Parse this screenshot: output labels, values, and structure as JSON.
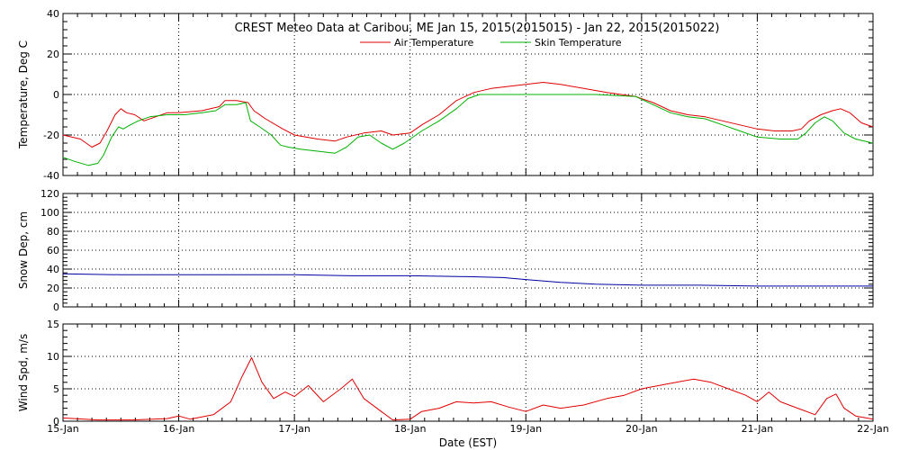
{
  "chart_data": {
    "type": "line",
    "title": "CREST Meteo Data at Caribou, ME   Jan 15, 2015(2015015) - Jan 22, 2015(2015022)",
    "xlabel": "Date (EST)",
    "x_range": [
      "2015-01-15",
      "2015-01-22"
    ],
    "x_ticks": [
      "15-Jan",
      "16-Jan",
      "17-Jan",
      "18-Jan",
      "19-Jan",
      "20-Jan",
      "21-Jan",
      "22-Jan"
    ],
    "grid": true,
    "panels": [
      {
        "ylabel": "Temperature, Deg C",
        "ylim": [
          -40,
          40
        ],
        "y_ticks": [
          -40,
          -20,
          0,
          20,
          40
        ],
        "legend": "top-center",
        "series": [
          {
            "name": "Air Temperature",
            "color": "#e00000",
            "points": [
              [
                0.0,
                -20
              ],
              [
                0.15,
                -22
              ],
              [
                0.25,
                -26
              ],
              [
                0.32,
                -24
              ],
              [
                0.38,
                -18
              ],
              [
                0.45,
                -10
              ],
              [
                0.5,
                -7
              ],
              [
                0.55,
                -9
              ],
              [
                0.62,
                -10
              ],
              [
                0.7,
                -13
              ],
              [
                0.8,
                -11
              ],
              [
                0.9,
                -9
              ],
              [
                1.0,
                -9
              ],
              [
                1.2,
                -8
              ],
              [
                1.35,
                -6
              ],
              [
                1.4,
                -3
              ],
              [
                1.5,
                -3
              ],
              [
                1.6,
                -4
              ],
              [
                1.65,
                -8
              ],
              [
                1.75,
                -12
              ],
              [
                1.9,
                -17
              ],
              [
                2.0,
                -20
              ],
              [
                2.2,
                -22
              ],
              [
                2.35,
                -23
              ],
              [
                2.45,
                -21
              ],
              [
                2.6,
                -19
              ],
              [
                2.75,
                -18
              ],
              [
                2.85,
                -20
              ],
              [
                3.0,
                -19
              ],
              [
                3.1,
                -15
              ],
              [
                3.25,
                -10
              ],
              [
                3.4,
                -3
              ],
              [
                3.55,
                1
              ],
              [
                3.7,
                3
              ],
              [
                3.85,
                4
              ],
              [
                4.0,
                5
              ],
              [
                4.15,
                6
              ],
              [
                4.3,
                5
              ],
              [
                4.5,
                3
              ],
              [
                4.7,
                1
              ],
              [
                4.95,
                -1
              ],
              [
                5.1,
                -4
              ],
              [
                5.25,
                -8
              ],
              [
                5.4,
                -10
              ],
              [
                5.55,
                -11
              ],
              [
                5.7,
                -13
              ],
              [
                5.85,
                -15
              ],
              [
                6.0,
                -17
              ],
              [
                6.15,
                -18
              ],
              [
                6.3,
                -18
              ],
              [
                6.38,
                -17
              ],
              [
                6.45,
                -13
              ],
              [
                6.55,
                -10
              ],
              [
                6.65,
                -8
              ],
              [
                6.72,
                -7
              ],
              [
                6.8,
                -9
              ],
              [
                6.9,
                -14
              ],
              [
                7.0,
                -16
              ]
            ]
          },
          {
            "name": "Skin Temperature",
            "color": "#00b000",
            "points": [
              [
                0.0,
                -31
              ],
              [
                0.1,
                -33
              ],
              [
                0.22,
                -35
              ],
              [
                0.3,
                -34
              ],
              [
                0.35,
                -30
              ],
              [
                0.42,
                -21
              ],
              [
                0.48,
                -16
              ],
              [
                0.52,
                -17
              ],
              [
                0.58,
                -15
              ],
              [
                0.65,
                -13
              ],
              [
                0.75,
                -11
              ],
              [
                0.9,
                -10
              ],
              [
                1.05,
                -10
              ],
              [
                1.2,
                -9
              ],
              [
                1.32,
                -8
              ],
              [
                1.4,
                -5
              ],
              [
                1.5,
                -5
              ],
              [
                1.58,
                -4
              ],
              [
                1.62,
                -13
              ],
              [
                1.7,
                -16
              ],
              [
                1.8,
                -20
              ],
              [
                1.88,
                -25
              ],
              [
                1.95,
                -26
              ],
              [
                2.05,
                -27
              ],
              [
                2.2,
                -28
              ],
              [
                2.35,
                -29
              ],
              [
                2.45,
                -26
              ],
              [
                2.55,
                -21
              ],
              [
                2.65,
                -20
              ],
              [
                2.75,
                -24
              ],
              [
                2.85,
                -27
              ],
              [
                2.95,
                -24
              ],
              [
                3.1,
                -18
              ],
              [
                3.25,
                -13
              ],
              [
                3.4,
                -7
              ],
              [
                3.5,
                -2
              ],
              [
                3.6,
                0
              ],
              [
                3.8,
                0
              ],
              [
                4.0,
                0
              ],
              [
                4.3,
                0
              ],
              [
                4.6,
                0
              ],
              [
                4.95,
                -1
              ],
              [
                5.1,
                -5
              ],
              [
                5.25,
                -9
              ],
              [
                5.4,
                -11
              ],
              [
                5.55,
                -12
              ],
              [
                5.7,
                -15
              ],
              [
                5.85,
                -18
              ],
              [
                6.0,
                -21
              ],
              [
                6.2,
                -22
              ],
              [
                6.35,
                -22
              ],
              [
                6.42,
                -19
              ],
              [
                6.5,
                -14
              ],
              [
                6.58,
                -11
              ],
              [
                6.65,
                -13
              ],
              [
                6.75,
                -19
              ],
              [
                6.85,
                -22
              ],
              [
                7.0,
                -24
              ]
            ]
          }
        ]
      },
      {
        "ylabel": "Snow Dep, cm",
        "ylim": [
          0,
          120
        ],
        "y_ticks": [
          0,
          20,
          40,
          60,
          80,
          100,
          120
        ],
        "series": [
          {
            "color": "#0000a0",
            "points": [
              [
                0.0,
                35
              ],
              [
                0.5,
                34
              ],
              [
                1.0,
                34
              ],
              [
                1.5,
                34
              ],
              [
                2.0,
                34
              ],
              [
                2.5,
                33
              ],
              [
                3.0,
                33
              ],
              [
                3.5,
                32
              ],
              [
                3.8,
                31
              ],
              [
                4.0,
                29
              ],
              [
                4.3,
                26
              ],
              [
                4.6,
                24
              ],
              [
                5.0,
                23
              ],
              [
                5.5,
                23
              ],
              [
                6.0,
                22
              ],
              [
                6.5,
                22
              ],
              [
                7.0,
                22
              ]
            ]
          }
        ]
      },
      {
        "ylabel": "Wind Spd, m/s",
        "ylim": [
          0,
          15
        ],
        "y_ticks": [
          0,
          5,
          10,
          15
        ],
        "series": [
          {
            "color": "#e00000",
            "points": [
              [
                0.0,
                0.5
              ],
              [
                0.3,
                0.2
              ],
              [
                0.6,
                0.2
              ],
              [
                0.9,
                0.4
              ],
              [
                1.0,
                0.8
              ],
              [
                1.1,
                0.3
              ],
              [
                1.3,
                1.0
              ],
              [
                1.45,
                3.0
              ],
              [
                1.55,
                7.0
              ],
              [
                1.63,
                9.8
              ],
              [
                1.72,
                6.0
              ],
              [
                1.82,
                3.5
              ],
              [
                1.92,
                4.5
              ],
              [
                2.0,
                3.8
              ],
              [
                2.12,
                5.5
              ],
              [
                2.25,
                3.0
              ],
              [
                2.4,
                5.0
              ],
              [
                2.5,
                6.5
              ],
              [
                2.6,
                3.5
              ],
              [
                2.75,
                1.5
              ],
              [
                2.85,
                0.2
              ],
              [
                3.0,
                0.3
              ],
              [
                3.1,
                1.5
              ],
              [
                3.25,
                2.0
              ],
              [
                3.4,
                3.0
              ],
              [
                3.55,
                2.8
              ],
              [
                3.7,
                3.0
              ],
              [
                3.85,
                2.2
              ],
              [
                4.0,
                1.5
              ],
              [
                4.15,
                2.5
              ],
              [
                4.3,
                2.0
              ],
              [
                4.5,
                2.5
              ],
              [
                4.7,
                3.5
              ],
              [
                4.85,
                4.0
              ],
              [
                5.0,
                5.0
              ],
              [
                5.15,
                5.5
              ],
              [
                5.3,
                6.0
              ],
              [
                5.45,
                6.5
              ],
              [
                5.6,
                6.0
              ],
              [
                5.75,
                5.0
              ],
              [
                5.9,
                4.0
              ],
              [
                6.0,
                3.0
              ],
              [
                6.1,
                4.5
              ],
              [
                6.2,
                3.0
              ],
              [
                6.35,
                2.0
              ],
              [
                6.5,
                1.0
              ],
              [
                6.6,
                3.5
              ],
              [
                6.68,
                4.2
              ],
              [
                6.75,
                2.0
              ],
              [
                6.85,
                0.8
              ],
              [
                7.0,
                0.3
              ]
            ]
          }
        ]
      }
    ]
  }
}
